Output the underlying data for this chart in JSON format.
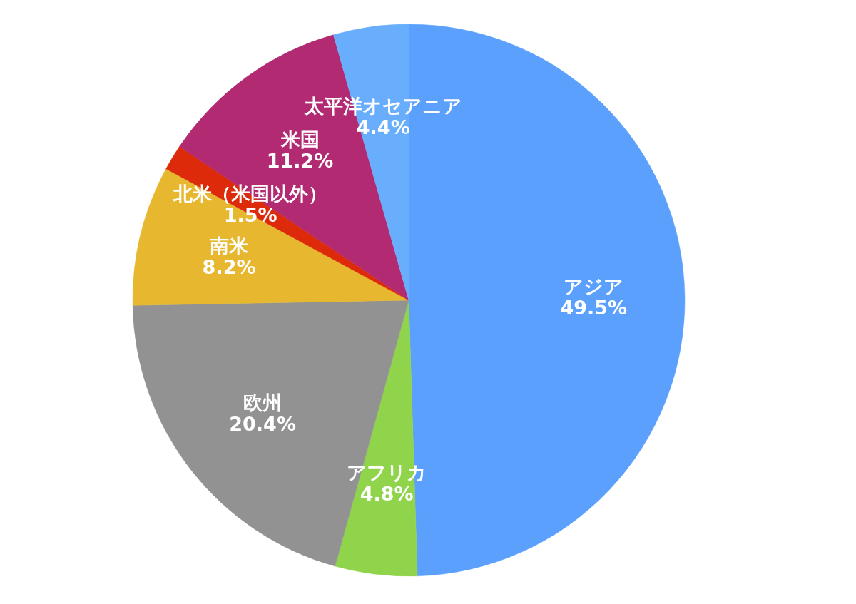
{
  "chart_data": {
    "type": "pie",
    "categories": [
      "アジア",
      "アフリカ",
      "欧州",
      "南米",
      "北米（米国以外）",
      "米国",
      "太平洋オセアニア"
    ],
    "values": [
      49.5,
      4.8,
      20.4,
      8.2,
      1.5,
      11.2,
      4.4
    ],
    "value_labels": [
      "49.5%",
      "4.8%",
      "20.4%",
      "8.2%",
      "1.5%",
      "11.2%",
      "4.4%"
    ],
    "colors": [
      "#5ba0fd",
      "#8fd44b",
      "#929292",
      "#e6b72f",
      "#dc2a0a",
      "#b22a72",
      "#69aefd"
    ],
    "legend": false
  }
}
